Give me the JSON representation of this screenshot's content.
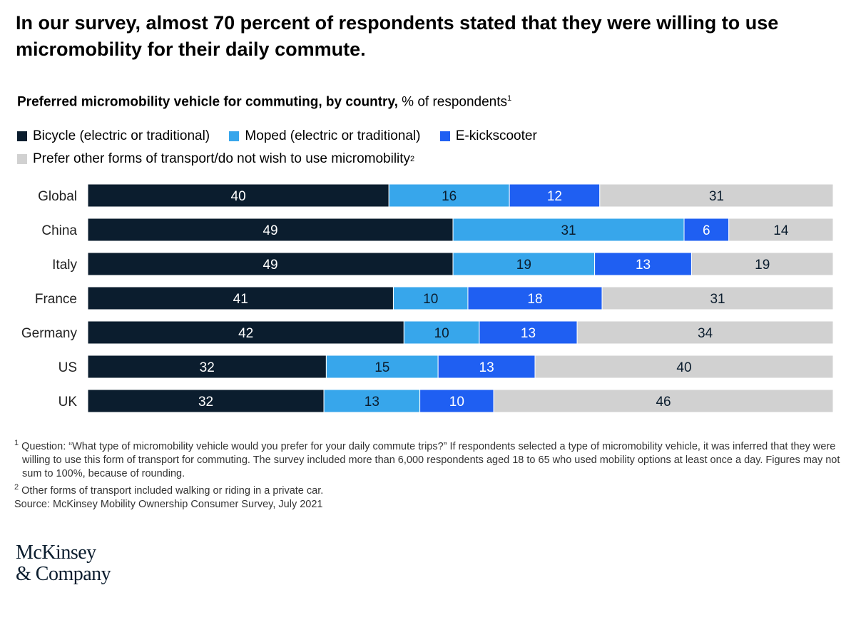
{
  "title": "In our survey, almost 70 percent of respondents stated that they were willing to use micromobility for their daily commute.",
  "subtitle_bold": "Preferred micromobility vehicle for commuting, by country,",
  "subtitle_rest": " % of respondents",
  "subtitle_sup": "1",
  "footnotes": {
    "n1_mark": "1",
    "n1": " Question: “What type of micromobility vehicle would you prefer for your daily commute trips?” If respondents selected a type of micromobility vehicle, it was inferred that they were willing to use this form of transport for commuting. The survey included more than 6,000 respondents aged 18 to 65 who used mobility options at least once a day. Figures may not sum to 100%, because of rounding.",
    "n2_mark": "2",
    "n2": " Other forms of transport included walking or riding in a private car.",
    "source": "Source: McKinsey Mobility Ownership Consumer Survey, July 2021"
  },
  "logo": {
    "line1": "McKinsey",
    "line2": "& Company"
  },
  "chart_data": {
    "type": "bar",
    "orientation": "horizontal",
    "stacked": true,
    "legend_placement": "top",
    "grid": false,
    "categories": [
      "Global",
      "China",
      "Italy",
      "France",
      "Germany",
      "US",
      "UK"
    ],
    "series": [
      {
        "name": "Bicycle (electric or traditional)",
        "color": "#0b1d2e",
        "label_color": "#ffffff",
        "values": [
          40,
          49,
          49,
          41,
          42,
          32,
          32
        ]
      },
      {
        "name": "Moped (electric or traditional)",
        "color": "#37a6eb",
        "label_color": "#0b1d2e",
        "values": [
          16,
          31,
          19,
          10,
          10,
          15,
          13
        ]
      },
      {
        "name": "E-kickscooter",
        "color": "#1f5ff2",
        "label_color": "#ffffff",
        "values": [
          12,
          6,
          13,
          18,
          13,
          13,
          10
        ]
      },
      {
        "name": "Prefer other forms of transport/do not wish to use micromobility",
        "name_sup": "2",
        "color": "#d1d1d1",
        "label_color": "#0b1d2e",
        "values": [
          31,
          14,
          19,
          31,
          34,
          40,
          46
        ]
      }
    ]
  }
}
